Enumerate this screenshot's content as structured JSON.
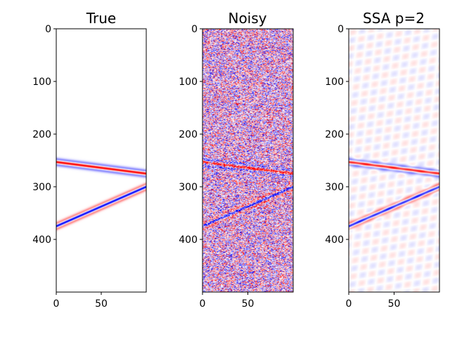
{
  "chart_data": {
    "type": "heatmap",
    "colormap": "bwr",
    "colors": {
      "negative": "#0000ff",
      "zero": "#ffffff",
      "positive": "#ff0000"
    },
    "grid": false,
    "x_range": [
      0,
      100
    ],
    "y_range": [
      0,
      500
    ],
    "y_inverted": true,
    "xticks": [
      0,
      50
    ],
    "yticks": [
      0,
      100,
      200,
      300,
      400
    ],
    "events": [
      {
        "name": "event-1",
        "y_at_x0": 253,
        "y_at_x100": 275
      },
      {
        "name": "event-2",
        "y_at_x0": 375,
        "y_at_x100": 300
      }
    ],
    "panels": [
      {
        "id": "true",
        "title": "True",
        "noise_level": 0.0,
        "residual_level": 0.0,
        "signal_strength": 1.0
      },
      {
        "id": "noisy",
        "title": "Noisy",
        "noise_level": 0.55,
        "residual_level": 0.0,
        "signal_strength": 1.0
      },
      {
        "id": "ssa",
        "title": "SSA p=2",
        "noise_level": 0.0,
        "residual_level": 0.12,
        "signal_strength": 0.85
      }
    ]
  }
}
